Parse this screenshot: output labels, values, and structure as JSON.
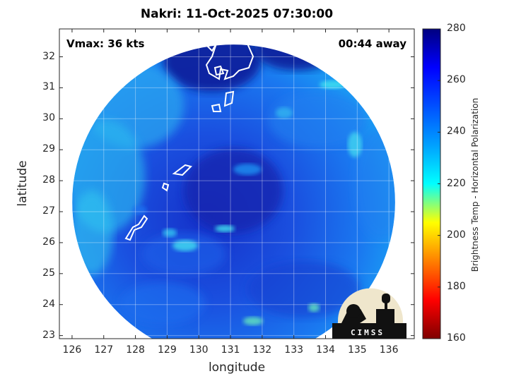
{
  "title": "Nakri: 11-Oct-2025 07:30:00",
  "annotations": {
    "vmax": "Vmax: 36 kts",
    "away": "00:44 away"
  },
  "map": {
    "xlabel": "longitude",
    "ylabel": "latitude",
    "xlim": [
      125.6,
      136.8
    ],
    "ylim": [
      22.9,
      32.9
    ],
    "xticks": [
      "126",
      "127",
      "128",
      "129",
      "130",
      "131",
      "132",
      "133",
      "134",
      "135",
      "136"
    ],
    "yticks": [
      "23",
      "24",
      "25",
      "26",
      "27",
      "28",
      "29",
      "30",
      "31",
      "32"
    ],
    "grid": true,
    "center": {
      "lon": 131.1,
      "lat": 27.3
    },
    "swath_radius_deg": 5.2
  },
  "colorbar": {
    "label": "Brightness Temp - Horizontal Polarization",
    "range": [
      160,
      280
    ],
    "ticks": [
      "280",
      "260",
      "240",
      "220",
      "200",
      "180",
      "160"
    ],
    "colormap": "jet"
  },
  "logo": {
    "text": "CIMSS",
    "icon": "cimss-logo-icon"
  }
}
